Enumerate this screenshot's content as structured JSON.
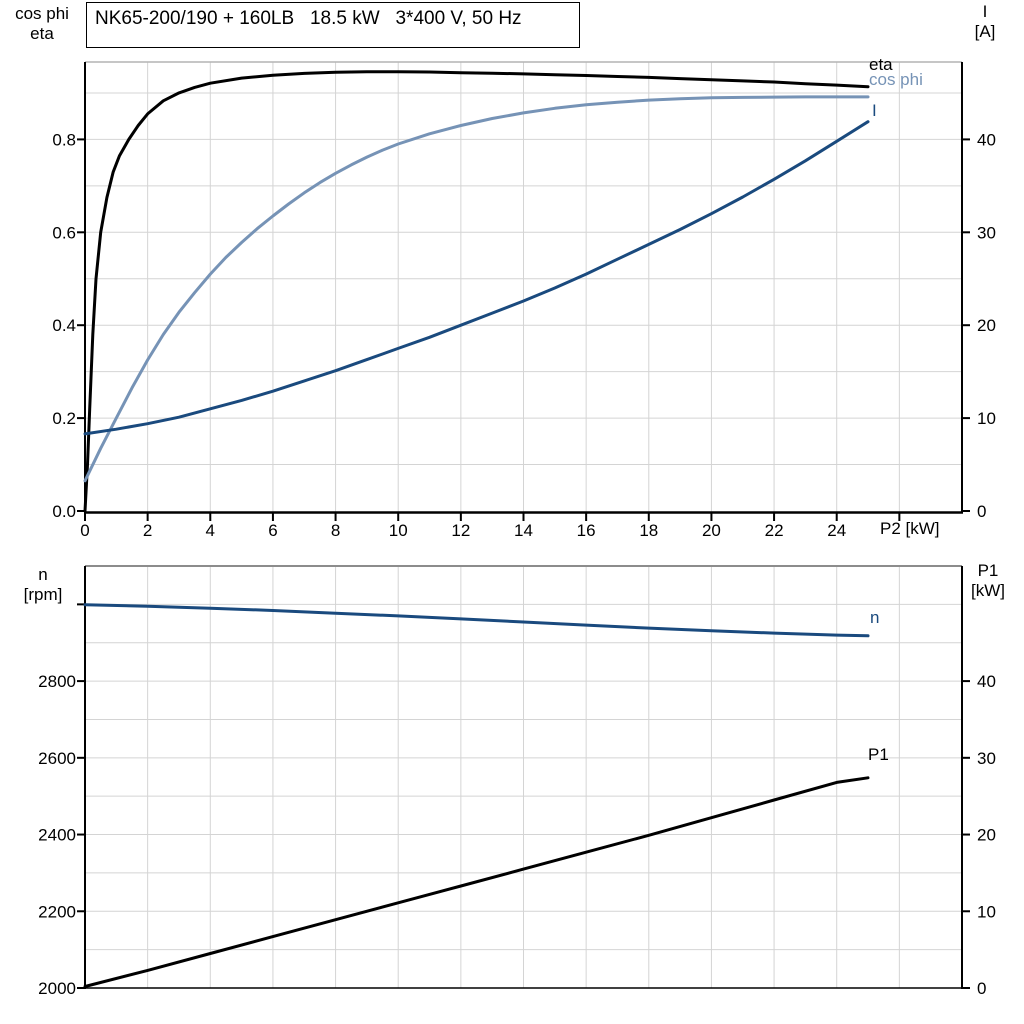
{
  "title": "NK65-200/190 + 160LB   18.5 kW   3*400 V, 50 Hz",
  "colors": {
    "eta": "#000000",
    "cos_phi": "#7693b6",
    "current": "#1a4a7e",
    "n": "#1a4a7e",
    "p1": "#000000",
    "grid": "#d4d4d4",
    "axis": "#000000"
  },
  "chart_data": [
    {
      "type": "line",
      "id": "top",
      "xlabel": "P2 [kW]",
      "x_range": [
        0,
        28
      ],
      "x_tick_values": [
        0,
        2,
        4,
        6,
        8,
        10,
        12,
        14,
        16,
        18,
        20,
        22,
        24
      ],
      "x_tick_labels": [
        "0",
        "2",
        "4",
        "6",
        "8",
        "10",
        "12",
        "14",
        "16",
        "18",
        "20",
        "22",
        "24"
      ],
      "grid": true,
      "legend_position": "right-end-of-curves",
      "left_axis": {
        "label_lines": [
          "cos phi",
          "eta"
        ],
        "range": [
          0,
          1
        ],
        "tick_values": [
          0,
          0.2,
          0.4,
          0.6,
          0.8
        ],
        "tick_labels": [
          "0.0",
          "0.2",
          "0.4",
          "0.6",
          "0.8"
        ],
        "minor_step": 0.1
      },
      "right_axis": {
        "label_lines": [
          "I",
          "[A]"
        ],
        "range": [
          0,
          50
        ],
        "tick_values": [
          0,
          10,
          20,
          30,
          40
        ],
        "tick_labels": [
          "0",
          "10",
          "20",
          "30",
          "40"
        ],
        "minor_step": 5
      },
      "series": [
        {
          "name": "eta",
          "label": "eta",
          "axis": "left",
          "color_key": "eta",
          "points": [
            [
              0,
              0
            ],
            [
              0.08,
              0.1
            ],
            [
              0.15,
              0.22
            ],
            [
              0.25,
              0.38
            ],
            [
              0.35,
              0.5
            ],
            [
              0.5,
              0.6
            ],
            [
              0.7,
              0.675
            ],
            [
              0.9,
              0.73
            ],
            [
              1.1,
              0.765
            ],
            [
              1.4,
              0.8
            ],
            [
              1.7,
              0.83
            ],
            [
              2,
              0.855
            ],
            [
              2.5,
              0.883
            ],
            [
              3,
              0.9
            ],
            [
              3.5,
              0.912
            ],
            [
              4,
              0.921
            ],
            [
              5,
              0.932
            ],
            [
              6,
              0.938
            ],
            [
              7,
              0.942
            ],
            [
              8,
              0.9445
            ],
            [
              9,
              0.9455
            ],
            [
              10,
              0.9455
            ],
            [
              11,
              0.945
            ],
            [
              12,
              0.9435
            ],
            [
              13,
              0.9425
            ],
            [
              14,
              0.941
            ],
            [
              15,
              0.939
            ],
            [
              16,
              0.9375
            ],
            [
              17,
              0.9355
            ],
            [
              18,
              0.9335
            ],
            [
              19,
              0.931
            ],
            [
              20,
              0.9285
            ],
            [
              21,
              0.926
            ],
            [
              22,
              0.9235
            ],
            [
              23,
              0.92
            ],
            [
              24,
              0.917
            ],
            [
              25,
              0.9135
            ]
          ]
        },
        {
          "name": "cos phi",
          "label": "cos phi",
          "axis": "left",
          "color_key": "cos_phi",
          "points": [
            [
              0,
              0.065
            ],
            [
              0.5,
              0.135
            ],
            [
              1,
              0.2
            ],
            [
              1.5,
              0.265
            ],
            [
              2,
              0.325
            ],
            [
              2.5,
              0.38
            ],
            [
              3,
              0.428
            ],
            [
              3.5,
              0.47
            ],
            [
              4,
              0.51
            ],
            [
              4.5,
              0.546
            ],
            [
              5,
              0.578
            ],
            [
              5.5,
              0.608
            ],
            [
              6,
              0.635
            ],
            [
              6.5,
              0.661
            ],
            [
              7,
              0.685
            ],
            [
              7.5,
              0.707
            ],
            [
              8,
              0.727
            ],
            [
              8.5,
              0.745
            ],
            [
              9,
              0.762
            ],
            [
              9.5,
              0.777
            ],
            [
              10,
              0.79
            ],
            [
              11,
              0.812
            ],
            [
              12,
              0.83
            ],
            [
              13,
              0.845
            ],
            [
              14,
              0.857
            ],
            [
              15,
              0.867
            ],
            [
              16,
              0.8745
            ],
            [
              17,
              0.88
            ],
            [
              18,
              0.8845
            ],
            [
              19,
              0.8875
            ],
            [
              20,
              0.8895
            ],
            [
              21,
              0.8905
            ],
            [
              22,
              0.891
            ],
            [
              23,
              0.8915
            ],
            [
              24,
              0.8915
            ],
            [
              25,
              0.8915
            ]
          ]
        },
        {
          "name": "I",
          "label": "I",
          "axis": "right",
          "color_key": "current",
          "points": [
            [
              0,
              8.3
            ],
            [
              1,
              8.8
            ],
            [
              2,
              9.4
            ],
            [
              3,
              10.1
            ],
            [
              4,
              11
            ],
            [
              5,
              11.9
            ],
            [
              6,
              12.9
            ],
            [
              7,
              14
            ],
            [
              8,
              15.1
            ],
            [
              9,
              16.3
            ],
            [
              10,
              17.5
            ],
            [
              11,
              18.7
            ],
            [
              12,
              20
            ],
            [
              13,
              21.3
            ],
            [
              14,
              22.6
            ],
            [
              15,
              24
            ],
            [
              16,
              25.5
            ],
            [
              17,
              27.1
            ],
            [
              18,
              28.7
            ],
            [
              19,
              30.3
            ],
            [
              20,
              32
            ],
            [
              21,
              33.8
            ],
            [
              22,
              35.7
            ],
            [
              23,
              37.7
            ],
            [
              24,
              39.8
            ],
            [
              25,
              41.9
            ]
          ]
        }
      ]
    },
    {
      "type": "line",
      "id": "bottom",
      "xlabel": "",
      "x_range": [
        0,
        28
      ],
      "x_tick_values": [],
      "x_tick_labels": [],
      "grid": true,
      "left_axis": {
        "label_lines": [
          "n",
          "[rpm]"
        ],
        "range": [
          2000,
          3100
        ],
        "tick_values": [
          2000,
          2200,
          2400,
          2600,
          2800,
          3000
        ],
        "tick_labels": [
          "2000",
          "2200",
          "2400",
          "2600",
          "2800",
          ""
        ],
        "minor_step": 100
      },
      "right_axis": {
        "label_lines": [
          "P1",
          "[kW]"
        ],
        "range": [
          0,
          55
        ],
        "tick_values": [
          0,
          10,
          20,
          30,
          40
        ],
        "tick_labels": [
          "0",
          "10",
          "20",
          "30",
          "40"
        ],
        "minor_step": 5
      },
      "series": [
        {
          "name": "n",
          "label": "n",
          "axis": "left",
          "color_key": "n",
          "points": [
            [
              0,
              2999
            ],
            [
              2,
              2995
            ],
            [
              4,
              2990
            ],
            [
              6,
              2984
            ],
            [
              8,
              2977
            ],
            [
              10,
              2970
            ],
            [
              12,
              2962
            ],
            [
              14,
              2954
            ],
            [
              16,
              2946
            ],
            [
              18,
              2938
            ],
            [
              20,
              2931
            ],
            [
              22,
              2925
            ],
            [
              24,
              2920
            ],
            [
              25,
              2918
            ]
          ]
        },
        {
          "name": "P1",
          "label": "P1",
          "axis": "right",
          "color_key": "p1",
          "points": [
            [
              0,
              0.2
            ],
            [
              2,
              2.3
            ],
            [
              4,
              4.5
            ],
            [
              6,
              6.7
            ],
            [
              8,
              8.9
            ],
            [
              10,
              11.1
            ],
            [
              12,
              13.3
            ],
            [
              14,
              15.5
            ],
            [
              16,
              17.7
            ],
            [
              18,
              19.9
            ],
            [
              20,
              22.2
            ],
            [
              22,
              24.5
            ],
            [
              24,
              26.8
            ],
            [
              25,
              27.4
            ]
          ]
        }
      ]
    }
  ]
}
